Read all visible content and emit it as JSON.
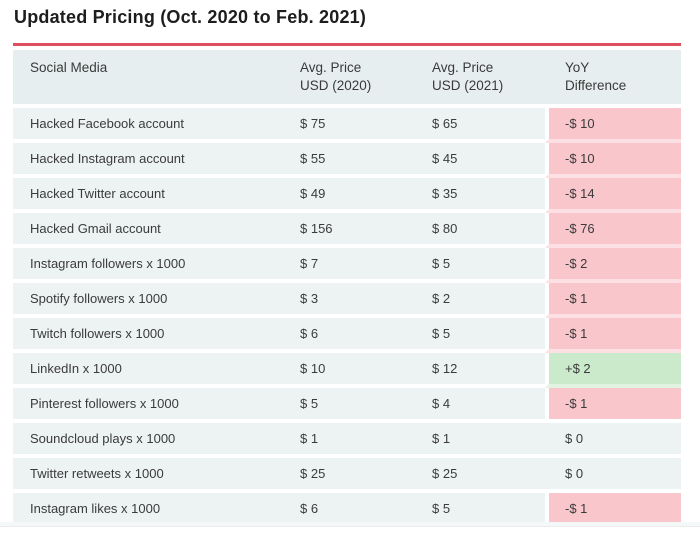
{
  "title": "Updated Pricing (Oct. 2020 to Feb. 2021)",
  "colors": {
    "rule_red": "#e04f5e",
    "header_bg": "#e7eef0",
    "row_bg": "#edf2f3",
    "negative_bg": "#f9c6cc",
    "positive_bg": "#cbe9cb",
    "text": "#3b3b3b"
  },
  "table": {
    "columns": [
      {
        "line1": "Social Media",
        "line2": ""
      },
      {
        "line1": "Avg. Price",
        "line2": "USD (2020)"
      },
      {
        "line1": "Avg. Price",
        "line2": "USD (2021)"
      },
      {
        "line1": "YoY",
        "line2": "Difference"
      }
    ],
    "rows": [
      {
        "label": "Hacked Facebook account",
        "price_2020": "$ 75",
        "price_2021": "$ 65",
        "yoy": "-$ 10",
        "trend": "negative"
      },
      {
        "label": "Hacked Instagram account",
        "price_2020": "$ 55",
        "price_2021": "$ 45",
        "yoy": "-$ 10",
        "trend": "negative"
      },
      {
        "label": "Hacked Twitter account",
        "price_2020": "$ 49",
        "price_2021": "$ 35",
        "yoy": "-$ 14",
        "trend": "negative"
      },
      {
        "label": "Hacked Gmail account",
        "price_2020": "$ 156",
        "price_2021": "$ 80",
        "yoy": "-$ 76",
        "trend": "negative"
      },
      {
        "label": "Instagram followers x 1000",
        "price_2020": "$ 7",
        "price_2021": "$ 5",
        "yoy": "-$ 2",
        "trend": "negative"
      },
      {
        "label": "Spotify followers x 1000",
        "price_2020": "$ 3",
        "price_2021": "$ 2",
        "yoy": "-$ 1",
        "trend": "negative"
      },
      {
        "label": "Twitch followers x 1000",
        "price_2020": "$ 6",
        "price_2021": "$ 5",
        "yoy": "-$ 1",
        "trend": "negative"
      },
      {
        "label": "LinkedIn x 1000",
        "price_2020": "$ 10",
        "price_2021": "$ 12",
        "yoy": "+$ 2",
        "trend": "positive"
      },
      {
        "label": "Pinterest followers x 1000",
        "price_2020": "$ 5",
        "price_2021": "$ 4",
        "yoy": "-$ 1",
        "trend": "negative"
      },
      {
        "label": "Soundcloud plays x 1000",
        "price_2020": "$ 1",
        "price_2021": "$ 1",
        "yoy": "$ 0",
        "trend": "zero"
      },
      {
        "label": "Twitter retweets x 1000",
        "price_2020": "$ 25",
        "price_2021": "$ 25",
        "yoy": "$ 0",
        "trend": "zero"
      },
      {
        "label": "Instagram likes x 1000",
        "price_2020": "$ 6",
        "price_2021": "$ 5",
        "yoy": "-$ 1",
        "trend": "negative"
      }
    ]
  },
  "chart_data": {
    "type": "table",
    "title": "Updated Pricing (Oct. 2020 to Feb. 2021)",
    "categories": [
      "Hacked Facebook account",
      "Hacked Instagram account",
      "Hacked Twitter account",
      "Hacked Gmail account",
      "Instagram followers x 1000",
      "Spotify followers x 1000",
      "Twitch followers x 1000",
      "LinkedIn x 1000",
      "Pinterest followers x 1000",
      "Soundcloud plays x 1000",
      "Twitter retweets x 1000",
      "Instagram likes x 1000"
    ],
    "series": [
      {
        "name": "Avg. Price USD (2020)",
        "values": [
          75,
          55,
          49,
          156,
          7,
          3,
          6,
          10,
          5,
          1,
          25,
          6
        ]
      },
      {
        "name": "Avg. Price USD (2021)",
        "values": [
          65,
          45,
          35,
          80,
          5,
          2,
          5,
          12,
          4,
          1,
          25,
          5
        ]
      },
      {
        "name": "YoY Difference",
        "values": [
          -10,
          -10,
          -14,
          -76,
          -2,
          -1,
          -1,
          2,
          -1,
          0,
          0,
          -1
        ]
      }
    ]
  }
}
